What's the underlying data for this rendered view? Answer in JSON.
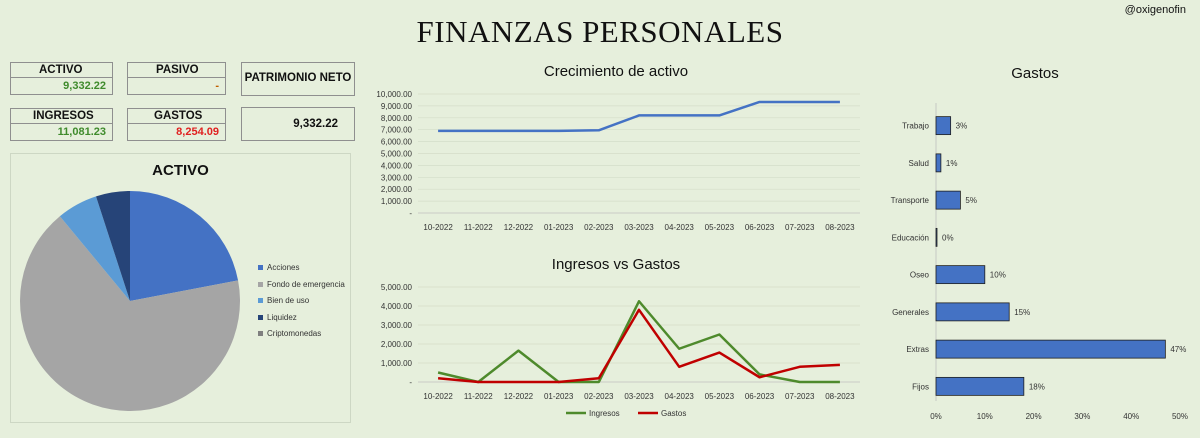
{
  "title": "FINANZAS PERSONALES",
  "handle": "@oxigenofin",
  "kpis": {
    "activo": {
      "label": "ACTIVO",
      "value": "9,332.22"
    },
    "pasivo": {
      "label": "PASIVO",
      "value": "-"
    },
    "patrimonio": {
      "label": "PATRIMONIO NETO",
      "value": "9,332.22"
    },
    "ingresos": {
      "label": "INGRESOS",
      "value": "11,081.23"
    },
    "gastos": {
      "label": "GASTOS",
      "value": "8,254.09"
    }
  },
  "colors": {
    "green": "#3f8b2c",
    "red": "#e02020",
    "blue": "#4472c4",
    "darkred": "#c00000",
    "bg": "#e6efdc"
  },
  "chart_data": [
    {
      "type": "pie",
      "title": "ACTIVO",
      "legend_position": "right",
      "labels": [
        "Acciones",
        "Fondo de emergencia",
        "Bien de uso",
        "Liquidez",
        "Criptomonedas"
      ],
      "values": [
        22,
        67,
        6,
        5,
        0
      ],
      "colors": [
        "#4472c4",
        "#a5a5a5",
        "#5b9bd5",
        "#264478",
        "#7f7f7f"
      ]
    },
    {
      "type": "line",
      "title": "Crecimiento de activo",
      "categories": [
        "10-2022",
        "11-2022",
        "12-2022",
        "01-2023",
        "02-2023",
        "03-2023",
        "04-2023",
        "05-2023",
        "06-2023",
        "07-2023",
        "08-2023"
      ],
      "series": [
        {
          "values": [
            6900,
            6900,
            6900,
            6900,
            6950,
            8200,
            8200,
            8200,
            9330,
            9330,
            9330
          ],
          "color": "#4472c4"
        }
      ],
      "ylim": [
        0,
        10000
      ],
      "yticks": [
        "10,000.00",
        "9,000.00",
        "8,000.00",
        "7,000.00",
        "6,000.00",
        "5,000.00",
        "4,000.00",
        "3,000.00",
        "2,000.00",
        "1,000.00",
        "-"
      ],
      "grid": true
    },
    {
      "type": "line",
      "title": "Ingresos vs Gastos",
      "categories": [
        "10-2022",
        "11-2022",
        "12-2022",
        "01-2023",
        "02-2023",
        "03-2023",
        "04-2023",
        "05-2023",
        "06-2023",
        "07-2023",
        "08-2023"
      ],
      "series": [
        {
          "name": "Ingresos",
          "values": [
            500,
            0,
            1650,
            0,
            0,
            4250,
            1750,
            2500,
            400,
            0,
            0
          ],
          "color": "#4e8a2c"
        },
        {
          "name": "Gastos",
          "values": [
            200,
            0,
            0,
            0,
            200,
            3800,
            800,
            1550,
            250,
            800,
            900
          ],
          "color": "#c00000"
        }
      ],
      "ylim": [
        0,
        5000
      ],
      "yticks": [
        "5,000.00",
        "4,000.00",
        "3,000.00",
        "2,000.00",
        "1,000.00",
        "-"
      ],
      "grid": true,
      "legend_position": "bottom"
    },
    {
      "type": "bar",
      "orientation": "horizontal",
      "title": "Gastos",
      "categories": [
        "Trabajo",
        "Salud",
        "Transporte",
        "Educación",
        "Oseo",
        "Generales",
        "Extras",
        "Fijos"
      ],
      "values": [
        3,
        1,
        5,
        0,
        10,
        15,
        47,
        18
      ],
      "data_labels": [
        "3%",
        "1%",
        "5%",
        "0%",
        "10%",
        "15%",
        "47%",
        "18%"
      ],
      "xlim": [
        0,
        50
      ],
      "xticks": [
        "0%",
        "10%",
        "20%",
        "30%",
        "40%",
        "50%"
      ],
      "color": "#4472c4"
    }
  ]
}
